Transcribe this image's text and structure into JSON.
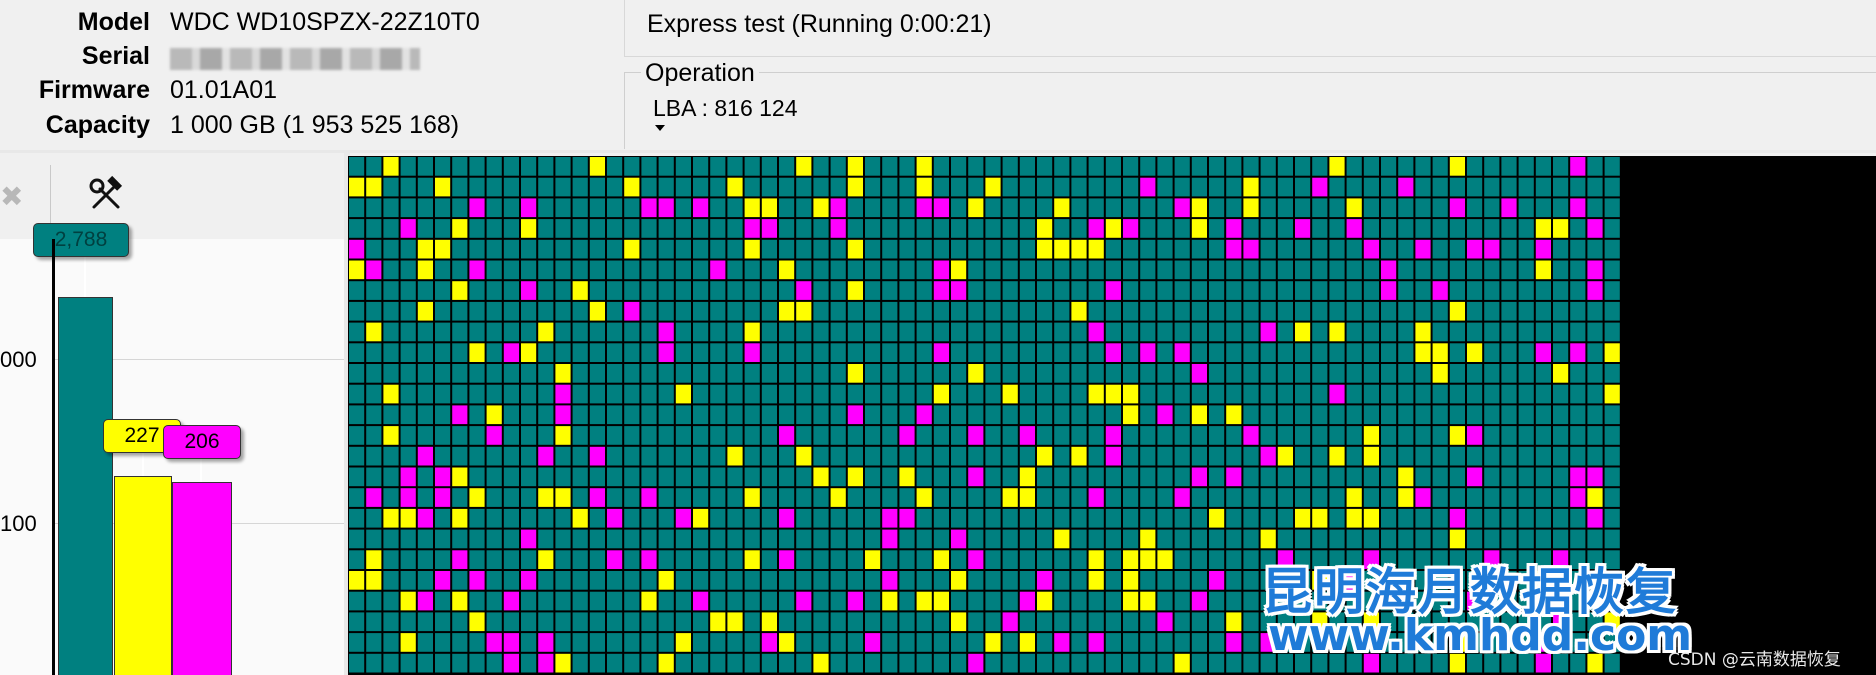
{
  "drive_info": {
    "model_label": "Model",
    "model_value": "WDC WD10SPZX-22Z10T0",
    "serial_label": "Serial",
    "firmware_label": "Firmware",
    "firmware_value": "01.01A01",
    "capacity_label": "Capacity",
    "capacity_value": "1 000 GB (1 953 525 168)"
  },
  "status": {
    "text": "Express test (Running 0:00:21)"
  },
  "operation": {
    "legend": "Operation",
    "lba_text": "LBA : 816 124"
  },
  "toolbar": {
    "tools_icon": "hammer-wrench-icon",
    "disabled_icon": "puzzle-icon"
  },
  "chart_data": {
    "type": "bar",
    "ytick_labels": [
      "000",
      "100"
    ],
    "bars": [
      {
        "color": "#008080",
        "label": "2,788"
      },
      {
        "color": "#ffff00",
        "label": "227"
      },
      {
        "color": "#ff00ff",
        "label": "206"
      }
    ]
  },
  "block_map": {
    "colors": {
      "normal": "#008080",
      "slow": "#ffff00",
      "very_slow": "#ff00ff",
      "border": "#000000"
    },
    "columns": 74,
    "rows": 25
  },
  "watermark": {
    "cn": "昆明海月数据恢复",
    "url": "www.kmhdd.com",
    "csdn": "CSDN @云南数据恢复"
  }
}
